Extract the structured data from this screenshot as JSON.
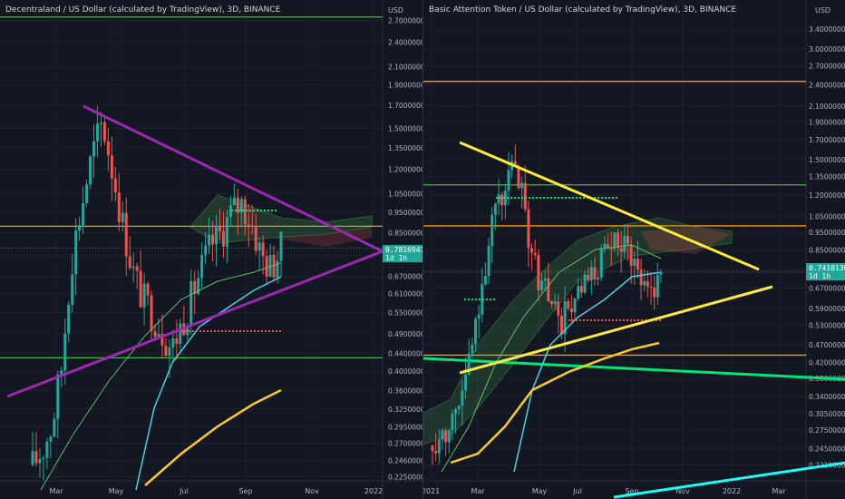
{
  "charts": [
    {
      "id": "left",
      "title": "Decentraland / US Dollar (calculated by TradingView), 3D, BINANCE",
      "currency": "USD",
      "price_ticks": [
        "2.70000000",
        "2.40000000",
        "2.10000000",
        "1.90000000",
        "1.70000000",
        "1.50000000",
        "1.35000000",
        "1.20000000",
        "1.05000000",
        "0.95000000",
        "0.85000000",
        "0.75000000",
        "0.67000000",
        "0.61000000",
        "0.55000000",
        "0.49000000",
        "0.44000000",
        "0.40000000",
        "0.36000000",
        "0.32500000",
        "0.29500000",
        "0.27000000",
        "0.24600000",
        "0.22500000"
      ],
      "time_ticks": [
        "Mar",
        "May",
        "Jul",
        "Sep",
        "Nov",
        "2022"
      ],
      "last_price": "0.78169410",
      "countdown": "1d 1h"
    },
    {
      "id": "right",
      "title": "Basic Attention Token / US Dollar (calculated by TradingView), 3D, BINANCE",
      "currency": "USD",
      "price_ticks": [
        "3.40000000",
        "3.00000000",
        "2.70000000",
        "2.40000000",
        "2.10000000",
        "1.90000000",
        "1.70000000",
        "1.50000000",
        "1.35000000",
        "1.20000000",
        "1.05000000",
        "0.95000000",
        "0.85000000",
        "0.75000000",
        "0.67000000",
        "0.59000000",
        "0.53000000",
        "0.47000000",
        "0.42000000",
        "0.38000000",
        "0.34000000",
        "0.30500000",
        "0.27500000",
        "0.24500000",
        "0.22100000"
      ],
      "time_ticks": [
        "2021",
        "Mar",
        "May",
        "Jul",
        "Sep",
        "Nov",
        "2022",
        "Mar"
      ],
      "last_price": "0.74101305",
      "countdown": "1d 1h"
    }
  ],
  "colors": {
    "background": "#131722",
    "grid": "#1e222d",
    "axis_text": "#b2b5be",
    "bull": "#26a69a",
    "bear": "#ef5350",
    "triangle_purple": "#9c27b0",
    "trend_yellow": "#ffeb3b",
    "level_orange": "#ff9800",
    "level_green": "#4caf50",
    "ma_cyan": "#4dd0e1",
    "badge": "#26a69a"
  },
  "chart_data": [
    {
      "type": "candlestick",
      "title": "Decentraland / US Dollar (calculated by TradingView), 3D, BINANCE",
      "x_range": [
        "2021-02",
        "2022-01"
      ],
      "y_scale": "log",
      "y_range": [
        0.22,
        2.9
      ],
      "last_price": 0.7817,
      "horizontal_levels": [
        2.75,
        0.88,
        0.43
      ],
      "trendlines": [
        {
          "name": "upper",
          "from": [
            "2021-04-10",
            1.8
          ],
          "to": [
            "2021-12-31",
            0.79
          ]
        },
        {
          "name": "lower",
          "from": [
            "2021-01-31",
            0.37
          ],
          "to": [
            "2021-12-31",
            0.79
          ]
        }
      ],
      "close_path": [
        0.24,
        0.26,
        0.3,
        0.42,
        0.75,
        1.0,
        1.3,
        1.55,
        1.2,
        0.9,
        0.7,
        0.6,
        0.55,
        0.5,
        0.45,
        0.52,
        0.6,
        0.7,
        0.8,
        0.85,
        0.95,
        1.0,
        0.9,
        0.75,
        0.7,
        0.78
      ]
    },
    {
      "type": "candlestick",
      "title": "Basic Attention Token / US Dollar (calculated by TradingView), 3D, BINANCE",
      "x_range": [
        "2021-01",
        "2022-03"
      ],
      "y_scale": "log",
      "y_range": [
        0.2,
        3.9
      ],
      "last_price": 0.741,
      "horizontal_levels": [
        2.45,
        1.28,
        0.99,
        0.44
      ],
      "trendlines": [
        {
          "name": "upper",
          "from": [
            "2021-02-15",
            1.6
          ],
          "to": [
            "2021-11-05",
            0.72
          ]
        },
        {
          "name": "lower",
          "from": [
            "2021-02-05",
            0.42
          ],
          "to": [
            "2021-12-25",
            0.67
          ]
        }
      ],
      "close_path": [
        0.25,
        0.27,
        0.3,
        0.35,
        0.45,
        0.7,
        1.0,
        1.2,
        1.4,
        1.2,
        0.8,
        0.7,
        0.6,
        0.55,
        0.6,
        0.65,
        0.7,
        0.8,
        0.85,
        0.9,
        0.85,
        0.7,
        0.68,
        0.74
      ]
    }
  ]
}
